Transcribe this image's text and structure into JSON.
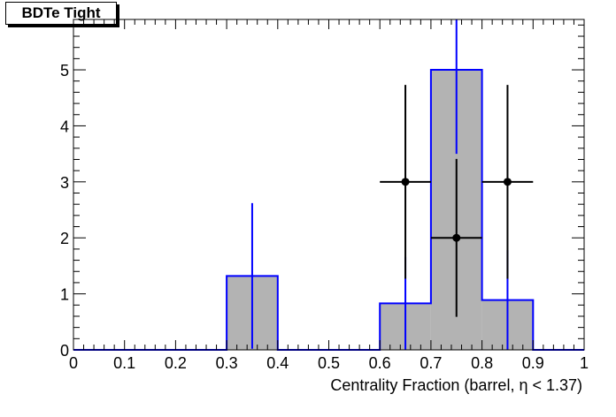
{
  "chart_data": {
    "type": "bar",
    "title": "BDTe Tight",
    "xlabel": "Centrality Fraction (barrel,   η < 1.37)",
    "ylabel": "",
    "xlim": [
      0,
      1
    ],
    "ylim": [
      0,
      5.9
    ],
    "x_ticks": [
      "0",
      "0.1",
      "0.2",
      "0.3",
      "0.4",
      "0.5",
      "0.6",
      "0.7",
      "0.8",
      "0.9",
      "1"
    ],
    "y_ticks": [
      "0",
      "1",
      "2",
      "3",
      "4",
      "5"
    ],
    "grid": false,
    "series": [
      {
        "kind": "histogram",
        "fill": "#b3b3b3",
        "line_color": "#0000ff",
        "bins": [
          {
            "x0": 0.0,
            "x1": 0.1,
            "value": 0
          },
          {
            "x0": 0.1,
            "x1": 0.2,
            "value": 0
          },
          {
            "x0": 0.2,
            "x1": 0.3,
            "value": 0
          },
          {
            "x0": 0.3,
            "x1": 0.4,
            "value": 1.32,
            "err": 1.3
          },
          {
            "x0": 0.4,
            "x1": 0.5,
            "value": 0
          },
          {
            "x0": 0.5,
            "x1": 0.6,
            "value": 0
          },
          {
            "x0": 0.6,
            "x1": 0.7,
            "value": 0.83,
            "err": 0.83
          },
          {
            "x0": 0.7,
            "x1": 0.8,
            "value": 5.0,
            "err": 1.5
          },
          {
            "x0": 0.8,
            "x1": 0.9,
            "value": 0.89,
            "err": 0.89
          },
          {
            "x0": 0.9,
            "x1": 1.0,
            "value": 0
          }
        ]
      },
      {
        "kind": "points",
        "color": "#000000",
        "points": [
          {
            "x": 0.65,
            "y": 3,
            "xerr": 0.05,
            "yerr_up": 1.73,
            "yerr_down": 1.73
          },
          {
            "x": 0.75,
            "y": 2,
            "xerr": 0.05,
            "yerr_up": 1.41,
            "yerr_down": 1.41
          },
          {
            "x": 0.85,
            "y": 3,
            "xerr": 0.05,
            "yerr_up": 1.73,
            "yerr_down": 1.73
          }
        ]
      }
    ]
  }
}
